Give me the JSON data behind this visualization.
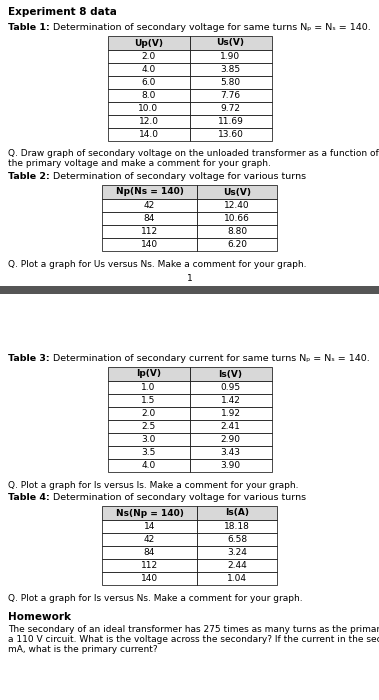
{
  "title_main": "Experiment 8 data",
  "bg_color": "#ffffff",
  "table1_title_bold": "Table 1:",
  "table1_title_rest": " Determination of secondary voltage for same turns Nₚ = Nₛ = 140.",
  "table1_headers": [
    "Up(V)",
    "Us(V)"
  ],
  "table1_data": [
    [
      "2.0",
      "1.90"
    ],
    [
      "4.0",
      "3.85"
    ],
    [
      "6.0",
      "5.80"
    ],
    [
      "8.0",
      "7.76"
    ],
    [
      "10.0",
      "9.72"
    ],
    [
      "12.0",
      "11.69"
    ],
    [
      "14.0",
      "13.60"
    ]
  ],
  "q1_line1": "Q. Draw graph of secondary voltage on the unloaded transformer as a function of",
  "q1_line2": "the primary voltage and make a comment for your graph.",
  "table2_title_bold": "Table 2:",
  "table2_title_rest": " Determination of secondary voltage for various turns",
  "table2_headers": [
    "Np(Ns = 140)",
    "Us(V)"
  ],
  "table2_data": [
    [
      "42",
      "12.40"
    ],
    [
      "84",
      "10.66"
    ],
    [
      "112",
      "8.80"
    ],
    [
      "140",
      "6.20"
    ]
  ],
  "q2_text": "Q. Plot a graph for Us versus Ns. Make a comment for your graph.",
  "page_number": "1",
  "separator_color": "#555555",
  "table3_title_bold": "Table 3:",
  "table3_title_rest": " Determination of secondary current for same turns Nₚ = Nₛ = 140.",
  "table3_headers": [
    "Ip(V)",
    "Is(V)"
  ],
  "table3_data": [
    [
      "1.0",
      "0.95"
    ],
    [
      "1.5",
      "1.42"
    ],
    [
      "2.0",
      "1.92"
    ],
    [
      "2.5",
      "2.41"
    ],
    [
      "3.0",
      "2.90"
    ],
    [
      "3.5",
      "3.43"
    ],
    [
      "4.0",
      "3.90"
    ]
  ],
  "q3_text": "Q. Plot a graph for Is versus Is. Make a comment for your graph.",
  "table4_title_bold": "Table 4:",
  "table4_title_rest": " Determination of secondary voltage for various turns",
  "table4_headers": [
    "Ns(Np = 140)",
    "Is(A)"
  ],
  "table4_data": [
    [
      "14",
      "18.18"
    ],
    [
      "42",
      "6.58"
    ],
    [
      "84",
      "3.24"
    ],
    [
      "112",
      "2.44"
    ],
    [
      "140",
      "1.04"
    ]
  ],
  "q4_text": "Q. Plot a graph for Is versus Ns. Make a comment for your graph.",
  "homework_title": "Homework",
  "homework_line1": "The secondary of an ideal transformer has 275 times as many turns as the primary. It is used in",
  "homework_line2": "a 110 V circuit. What is the voltage across the secondary? If the current in the secondary is 50",
  "homework_line3": "mA, what is the primary current?"
}
